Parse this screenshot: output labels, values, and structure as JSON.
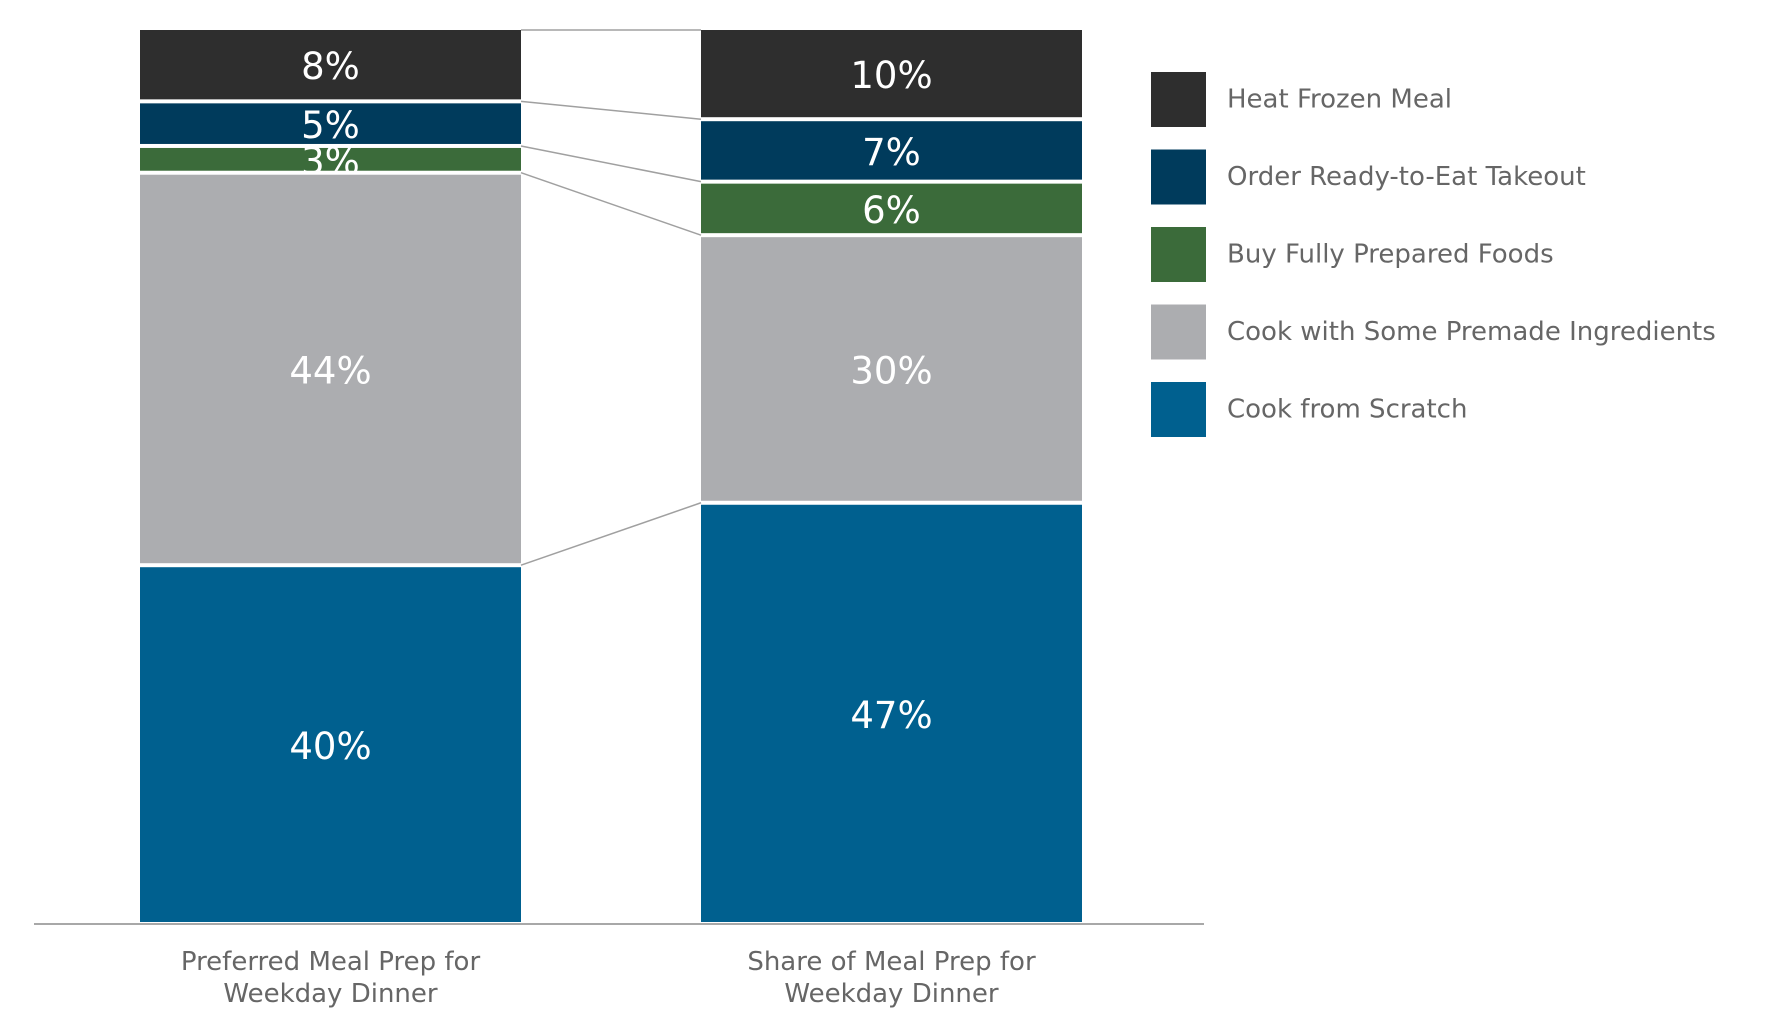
{
  "chart_data": {
    "type": "bar",
    "stacked": true,
    "normalized_percent": true,
    "categories": [
      [
        "Preferred Meal Prep for",
        "Weekday Dinner"
      ],
      [
        "Share of Meal Prep for",
        "Weekday Dinner"
      ]
    ],
    "series": [
      {
        "name": "Cook from Scratch",
        "color": "#00608f",
        "values": [
          40,
          47
        ],
        "labels": [
          "40%",
          "47%"
        ]
      },
      {
        "name": "Cook with Some Premade Ingredients",
        "color": "#acadb0",
        "values": [
          44,
          30
        ],
        "labels": [
          "44%",
          "30%"
        ]
      },
      {
        "name": "Buy Fully Prepared Foods",
        "color": "#3b6b3a",
        "values": [
          3,
          6
        ],
        "labels": [
          "3%",
          "6%"
        ]
      },
      {
        "name": "Order Ready-to-Eat Takeout",
        "color": "#003b5c",
        "values": [
          5,
          7
        ],
        "labels": [
          "5%",
          "7%"
        ]
      },
      {
        "name": "Heat Frozen Meal",
        "color": "#2e2e2e",
        "values": [
          8,
          10
        ],
        "labels": [
          "8%",
          "10%"
        ]
      }
    ],
    "legend_order": [
      "Heat Frozen Meal",
      "Order Ready-to-Eat Takeout",
      "Buy Fully Prepared Foods",
      "Cook with Some Premade Ingredients",
      "Cook from Scratch"
    ],
    "ylim": [
      0,
      100
    ],
    "legend_position": "right",
    "grid": false,
    "connector_color": "#a0a0a0",
    "axis_color": "#a8a8a8"
  }
}
